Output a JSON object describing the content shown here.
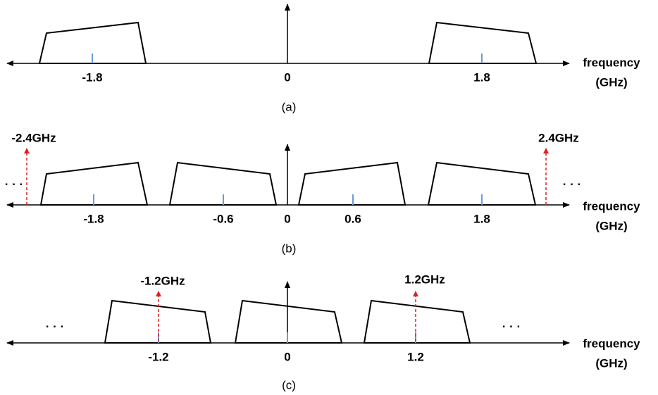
{
  "panels": [
    {
      "caption": "(a)",
      "axis_label": [
        "frequency",
        "(GHz)"
      ],
      "ticks": [
        "-1.8",
        "0",
        "1.8"
      ]
    },
    {
      "caption": "(b)",
      "axis_label": [
        "frequency",
        "(GHz)"
      ],
      "ticks": [
        "-1.8",
        "-0.6",
        "0",
        "0.6",
        "1.8"
      ],
      "markers": [
        "-2.4GHz",
        "2.4GHz"
      ],
      "ellipses": [
        "· · ·",
        "· · ·"
      ]
    },
    {
      "caption": "(c)",
      "axis_label": [
        "frequency",
        "(GHz)"
      ],
      "ticks": [
        "-1.2",
        "0",
        "1.2"
      ],
      "markers": [
        "-1.2GHz",
        "1.2GHz"
      ],
      "ellipses": [
        "· · ·",
        "· · ·"
      ]
    }
  ]
}
